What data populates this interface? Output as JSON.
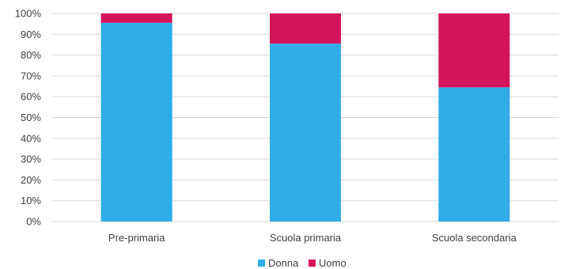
{
  "chart_data": {
    "type": "bar",
    "stacked": true,
    "percent": true,
    "categories": [
      "Pre-primaria",
      "Scuola primaria",
      "Scuola secondaria"
    ],
    "series": [
      {
        "name": "Donna",
        "values": [
          95.5,
          85.5,
          64.5
        ],
        "color": "#30ace6"
      },
      {
        "name": "Uomo",
        "values": [
          4.5,
          14.5,
          35.5
        ],
        "color": "#d4145a"
      }
    ],
    "ylim": [
      0,
      100
    ],
    "yticks": [
      "0%",
      "10%",
      "20%",
      "30%",
      "40%",
      "50%",
      "60%",
      "70%",
      "80%",
      "90%",
      "100%"
    ],
    "grid": true,
    "legend_position": "bottom"
  }
}
